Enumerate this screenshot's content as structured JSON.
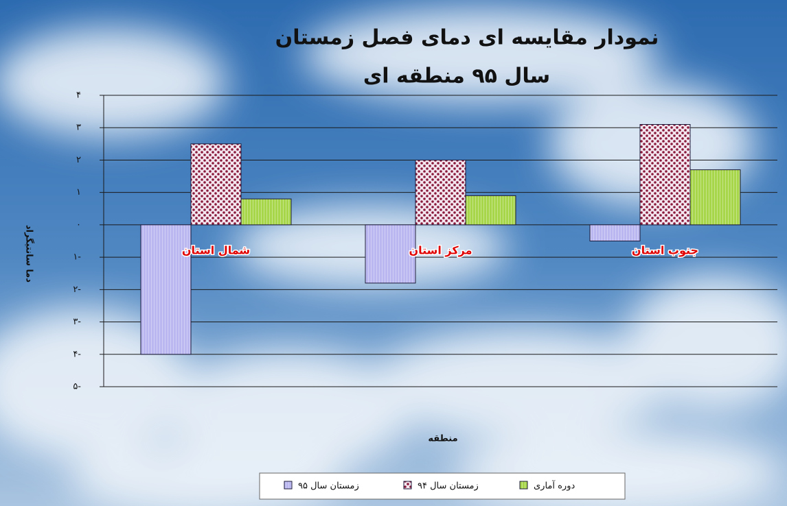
{
  "chart_data": {
    "type": "bar",
    "title": "نمودار مقایسه ای دمای فصل زمستان",
    "subtitle": "سال ۹۵ منطقه ای",
    "x_label": "منطقه",
    "y_label": "دما سانتیگراد",
    "categories": [
      "شمال استان",
      "مرکز استان",
      "جنوب استان"
    ],
    "series": [
      {
        "name": "زمستان سال ۹۵",
        "color": "#b9b6f0",
        "values": [
          -4.0,
          -1.8,
          -0.5
        ]
      },
      {
        "name": "زمستان سال ۹۴",
        "color": "#8a1a3c",
        "values": [
          2.5,
          2.0,
          3.1
        ]
      },
      {
        "name": "دوره آماری",
        "color": "#a8d64a",
        "values": [
          0.8,
          0.9,
          1.7
        ]
      }
    ],
    "ylim": [
      -5,
      4
    ],
    "yticks": [
      {
        "value": -5,
        "label": "۵-"
      },
      {
        "value": -4,
        "label": "۴-"
      },
      {
        "value": -3,
        "label": "۳-"
      },
      {
        "value": -2,
        "label": "۲-"
      },
      {
        "value": -1,
        "label": "۱-"
      },
      {
        "value": 0,
        "label": "۰"
      },
      {
        "value": 1,
        "label": "۱"
      },
      {
        "value": 2,
        "label": "۲"
      },
      {
        "value": 3,
        "label": "۳"
      },
      {
        "value": 4,
        "label": "۴"
      }
    ],
    "grid": true
  }
}
